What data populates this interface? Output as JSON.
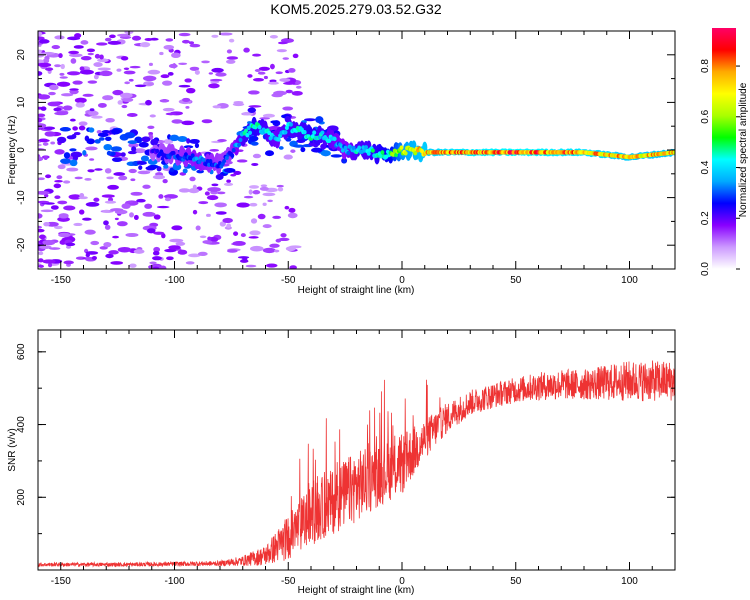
{
  "title": "KOM5.2025.279.03.52.G32",
  "chart_data": [
    {
      "type": "heatmap",
      "title": "KOM5.2025.279.03.52.G32",
      "xlabel": "Height of straight line (km)",
      "ylabel": "Frequency (Hz)",
      "xlim": [
        -160,
        120
      ],
      "ylim": [
        -25,
        25
      ],
      "xticks": [
        -150,
        -100,
        -50,
        0,
        50,
        100
      ],
      "yticks": [
        -20,
        -10,
        0,
        10,
        20
      ],
      "grid": false,
      "ridge": {
        "description_points_x": [
          -160,
          -140,
          -120,
          -100,
          -90,
          -80,
          -75,
          -70,
          -65,
          -60,
          -55,
          -50,
          -45,
          -40,
          -35,
          -30,
          -25,
          -20,
          -15,
          -10,
          -5,
          0,
          10,
          20,
          50,
          80,
          100,
          120
        ],
        "freq_hz": [
          1,
          0.5,
          0,
          -1,
          -2,
          -3,
          -1,
          3,
          5,
          4,
          2,
          5,
          4,
          3,
          3,
          2,
          0,
          0,
          0,
          -1,
          -1,
          0,
          -0.5,
          -0.5,
          -0.5,
          -0.5,
          -1.5,
          -0.5
        ],
        "amplitude": [
          0.1,
          0.15,
          0.2,
          0.3,
          0.35,
          0.3,
          0.3,
          0.45,
          0.5,
          0.45,
          0.4,
          0.45,
          0.45,
          0.5,
          0.45,
          0.4,
          0.35,
          0.45,
          0.45,
          0.5,
          0.55,
          0.7,
          0.8,
          0.85,
          0.9,
          0.85,
          0.8,
          0.8
        ]
      },
      "colorbar": {
        "label": "Normalized spectral amplitude",
        "range": [
          0.0,
          0.95
        ],
        "ticks": [
          0.0,
          0.2,
          0.4,
          0.6,
          0.8
        ],
        "tick_labels": [
          "0.0",
          "0.2",
          "0.4",
          "0.6",
          "0.8"
        ],
        "colors": [
          "#ffffff",
          "#cc99ff",
          "#8800ff",
          "#0000ff",
          "#00aaff",
          "#00ffff",
          "#00ff00",
          "#aaff00",
          "#ffff00",
          "#ffaa00",
          "#ff0000",
          "#ff0066"
        ]
      }
    },
    {
      "type": "line",
      "xlabel": "Height of straight line (km)",
      "ylabel": "SNR (v/v)",
      "xlim": [
        -160,
        120
      ],
      "ylim": [
        0,
        660
      ],
      "xticks": [
        -150,
        -100,
        -50,
        0,
        50,
        100
      ],
      "yticks": [
        200,
        400,
        600
      ],
      "grid": false,
      "color": "#ee3333",
      "trend": {
        "x": [
          -160,
          -120,
          -80,
          -70,
          -60,
          -50,
          -40,
          -30,
          -20,
          -10,
          0,
          10,
          20,
          30,
          40,
          50,
          60,
          70,
          80,
          90,
          100,
          110,
          120
        ],
        "y": [
          15,
          15,
          18,
          25,
          40,
          90,
          150,
          190,
          230,
          260,
          290,
          360,
          420,
          460,
          480,
          495,
          505,
          510,
          510,
          515,
          520,
          520,
          520
        ],
        "spread": [
          8,
          8,
          10,
          20,
          40,
          90,
          120,
          130,
          140,
          120,
          120,
          80,
          60,
          50,
          50,
          50,
          55,
          60,
          60,
          70,
          80,
          80,
          80
        ]
      }
    }
  ]
}
